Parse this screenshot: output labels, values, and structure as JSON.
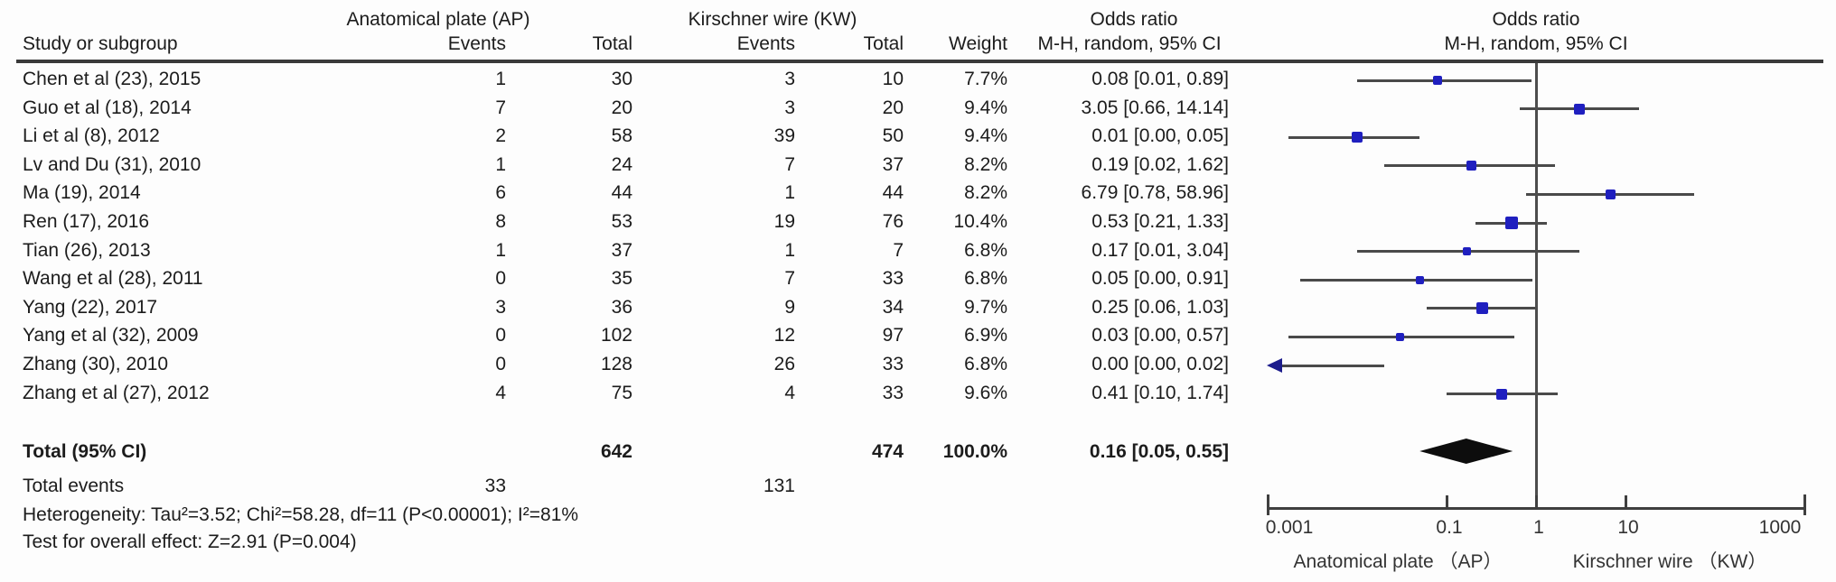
{
  "header": {
    "study_col": "Study or subgroup",
    "group1": {
      "label": "Anatomical plate (AP)",
      "events": "Events",
      "total": "Total"
    },
    "group2": {
      "label": "Kirschner wire (KW)",
      "events": "Events",
      "total": "Total"
    },
    "weight": "Weight",
    "or_col": {
      "line1": "Odds ratio",
      "line2": "M-H, random, 95% CI"
    },
    "plot_col": {
      "line1": "Odds ratio",
      "line2": "M-H, random, 95% CI"
    }
  },
  "chart_data": {
    "type": "scatter",
    "subtype": "forest-plot",
    "effect_measure": "Odds ratio M-H, random, 95% CI",
    "x_scale": "log",
    "x_range": [
      0.001,
      1000
    ],
    "x_ticks": [
      0.001,
      0.1,
      1,
      10,
      1000
    ],
    "x_tick_labels": [
      "0.001",
      "0.1",
      "1",
      "10",
      "1000"
    ],
    "x_axis_labels": {
      "left": "Anatomical plate （AP）",
      "right": "Kirschner wire （KW）"
    },
    "null_line": 1,
    "studies": [
      {
        "name": "Chen et al (23), 2015",
        "ap_events": 1,
        "ap_total": 30,
        "kw_events": 3,
        "kw_total": 10,
        "weight": "7.7%",
        "weight_value": 7.7,
        "or_text": "0.08 [0.01, 0.89]",
        "or": 0.08,
        "ci_low": 0.01,
        "ci_high": 0.89
      },
      {
        "name": "Guo et al (18), 2014",
        "ap_events": 7,
        "ap_total": 20,
        "kw_events": 3,
        "kw_total": 20,
        "weight": "9.4%",
        "weight_value": 9.4,
        "or_text": "3.05 [0.66, 14.14]",
        "or": 3.05,
        "ci_low": 0.66,
        "ci_high": 14.14
      },
      {
        "name": "Li et al (8), 2012",
        "ap_events": 2,
        "ap_total": 58,
        "kw_events": 39,
        "kw_total": 50,
        "weight": "9.4%",
        "weight_value": 9.4,
        "or_text": "0.01 [0.00, 0.05]",
        "or": 0.01,
        "ci_low": 0.0,
        "ci_high": 0.05,
        "plot_low": 0.0017
      },
      {
        "name": "Lv and Du (31), 2010",
        "ap_events": 1,
        "ap_total": 24,
        "kw_events": 7,
        "kw_total": 37,
        "weight": "8.2%",
        "weight_value": 8.2,
        "or_text": "0.19 [0.02, 1.62]",
        "or": 0.19,
        "ci_low": 0.02,
        "ci_high": 1.62
      },
      {
        "name": "Ma (19), 2014",
        "ap_events": 6,
        "ap_total": 44,
        "kw_events": 1,
        "kw_total": 44,
        "weight": "8.2%",
        "weight_value": 8.2,
        "or_text": "6.79 [0.78, 58.96]",
        "or": 6.79,
        "ci_low": 0.78,
        "ci_high": 58.96
      },
      {
        "name": "Ren (17), 2016",
        "ap_events": 8,
        "ap_total": 53,
        "kw_events": 19,
        "kw_total": 76,
        "weight": "10.4%",
        "weight_value": 10.4,
        "or_text": "0.53 [0.21, 1.33]",
        "or": 0.53,
        "ci_low": 0.21,
        "ci_high": 1.33
      },
      {
        "name": "Tian (26), 2013",
        "ap_events": 1,
        "ap_total": 37,
        "kw_events": 1,
        "kw_total": 7,
        "weight": "6.8%",
        "weight_value": 6.8,
        "or_text": "0.17 [0.01, 3.04]",
        "or": 0.17,
        "ci_low": 0.01,
        "ci_high": 3.04
      },
      {
        "name": "Wang et al (28), 2011",
        "ap_events": 0,
        "ap_total": 35,
        "kw_events": 7,
        "kw_total": 33,
        "weight": "6.8%",
        "weight_value": 6.8,
        "or_text": "0.05 [0.00, 0.91]",
        "or": 0.05,
        "ci_low": 0.0,
        "ci_high": 0.91,
        "plot_low": 0.0023
      },
      {
        "name": "Yang (22), 2017",
        "ap_events": 3,
        "ap_total": 36,
        "kw_events": 9,
        "kw_total": 34,
        "weight": "9.7%",
        "weight_value": 9.7,
        "or_text": "0.25 [0.06, 1.03]",
        "or": 0.25,
        "ci_low": 0.06,
        "ci_high": 1.03
      },
      {
        "name": "Yang et al (32), 2009",
        "ap_events": 0,
        "ap_total": 102,
        "kw_events": 12,
        "kw_total": 97,
        "weight": "6.9%",
        "weight_value": 6.9,
        "or_text": "0.03 [0.00, 0.57]",
        "or": 0.03,
        "ci_low": 0.0,
        "ci_high": 0.57,
        "plot_low": 0.0017
      },
      {
        "name": "Zhang (30), 2010",
        "ap_events": 0,
        "ap_total": 128,
        "kw_events": 26,
        "kw_total": 33,
        "weight": "6.8%",
        "weight_value": 6.8,
        "or_text": "0.00 [0.00, 0.02]",
        "or": 0.0,
        "ci_low": 0.0,
        "ci_high": 0.02,
        "offscale_left": true,
        "plot_low": 0.0011
      },
      {
        "name": "Zhang et al (27), 2012",
        "ap_events": 4,
        "ap_total": 75,
        "kw_events": 4,
        "kw_total": 33,
        "weight": "9.6%",
        "weight_value": 9.6,
        "or_text": "0.41 [0.10, 1.74]",
        "or": 0.41,
        "ci_low": 0.1,
        "ci_high": 1.74
      }
    ],
    "total": {
      "label": "Total (95% CI)",
      "ap_total": 642,
      "kw_total": 474,
      "weight": "100.0%",
      "or_text": "0.16 [0.05, 0.55]",
      "or": 0.16,
      "ci_low": 0.05,
      "ci_high": 0.55
    },
    "total_events": {
      "label": "Total events",
      "ap": 33,
      "kw": 131
    },
    "heterogeneity": "Heterogeneity: Tau²=3.52; Chi²=58.28, df=11 (P<0.00001); I²=81%",
    "overall_effect": "Test for overall effect: Z=2.91 (P=0.004)"
  },
  "colors": {
    "marker": "#1f1fbf",
    "ci_line": "#4a4a4a",
    "diamond": "#0d0d0d",
    "text": "#1c1c1c",
    "axis": "#3f3f3f",
    "background": "#fdfdfd"
  }
}
